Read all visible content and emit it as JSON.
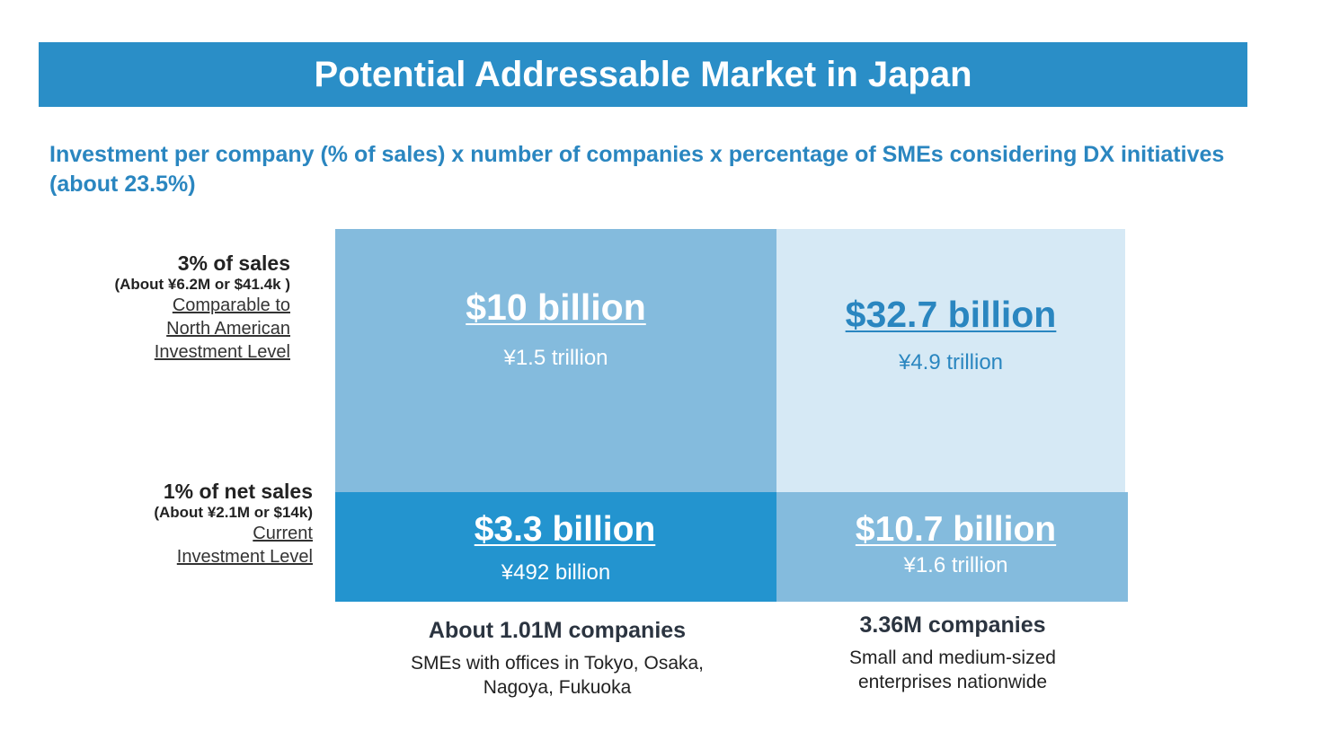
{
  "title": "Potential Addressable Market in Japan",
  "subtitle": "Investment per company (% of sales) x number of companies x percentage of SMEs considering DX initiatives (about 23.5%)",
  "rows": [
    {
      "head": "3% of sales",
      "detail": "(About ¥6.2M or $41.4k )",
      "link_lines": [
        "Comparable to",
        "North American",
        "Investment Level"
      ]
    },
    {
      "head": "1% of net sales",
      "detail": "(About ¥2.1M or $14k)",
      "link_lines": [
        "Current",
        "Investment Level"
      ]
    }
  ],
  "cells": {
    "top_left": {
      "usd": "$10 billion",
      "jpy": "¥1.5 trillion"
    },
    "top_right": {
      "usd": "$32.7 billion",
      "jpy": "¥4.9 trillion"
    },
    "bottom_left": {
      "usd": "$3.3 billion",
      "jpy": "¥492 billion"
    },
    "bottom_right": {
      "usd": "$10.7 billion",
      "jpy": "¥1.6 trillion"
    }
  },
  "columns": [
    {
      "head": "About 1.01M companies",
      "desc_lines": [
        "SMEs with offices in Tokyo, Osaka,",
        "Nagoya, Fukuoka"
      ]
    },
    {
      "head": "3.36M companies",
      "desc_lines": [
        "Small and medium-sized",
        "enterprises nationwide"
      ]
    }
  ],
  "colors": {
    "title_bar": "#2a8ec7",
    "subtitle": "#2a86c0",
    "cell_top_left": "#84bbdd",
    "cell_top_right": "#d6e9f5",
    "cell_bottom_left": "#2394cf",
    "cell_bottom_right": "#84bbdd"
  }
}
